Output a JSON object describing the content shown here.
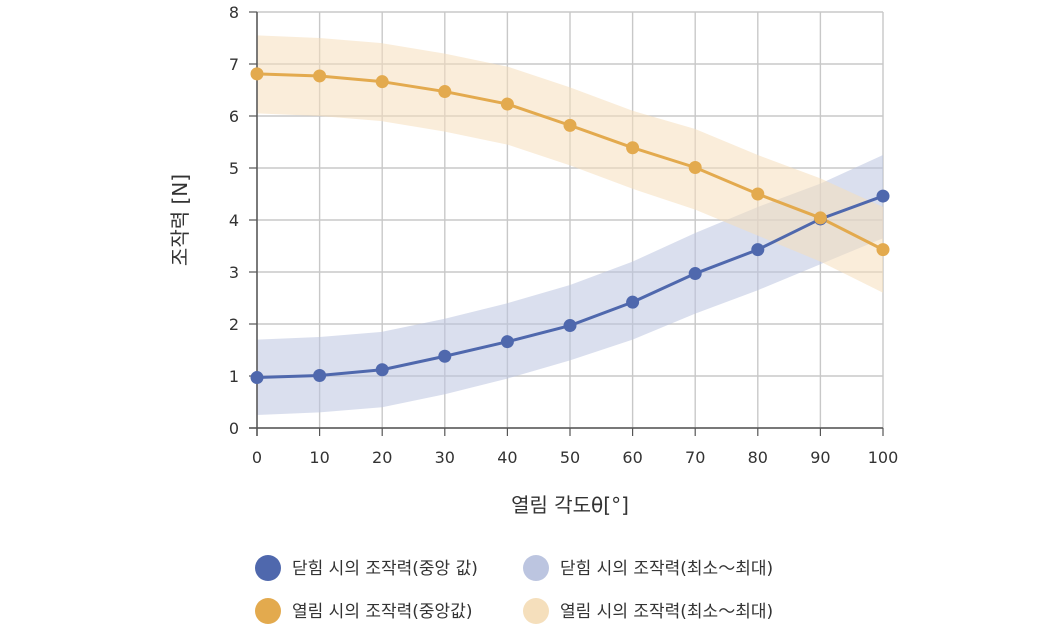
{
  "chart_data": {
    "type": "line",
    "xlabel": "열림 각도θ[°]",
    "ylabel": "조작력 [N]",
    "xlim": [
      0,
      100
    ],
    "ylim": [
      0,
      8
    ],
    "x": [
      0,
      10,
      20,
      30,
      40,
      50,
      60,
      70,
      80,
      90,
      100
    ],
    "x_ticks": [
      "0",
      "10",
      "20",
      "30",
      "40",
      "50",
      "60",
      "70",
      "80",
      "90",
      "100"
    ],
    "y_ticks": [
      "0",
      "1",
      "2",
      "3",
      "4",
      "5",
      "6",
      "7",
      "8"
    ],
    "grid": true,
    "legend_position": "bottom",
    "series": [
      {
        "name": "닫힘 시의 조작력(중앙 값)",
        "color": "#4F68AD",
        "values": [
          0.97,
          1.01,
          1.12,
          1.38,
          1.66,
          1.97,
          2.42,
          2.97,
          3.43,
          4.02,
          4.46
        ]
      },
      {
        "name": "열림 시의 조작력(중앙값)",
        "color": "#E3AA4E",
        "values": [
          6.81,
          6.77,
          6.66,
          6.47,
          6.23,
          5.82,
          5.39,
          5.01,
          4.5,
          4.04,
          3.43
        ]
      }
    ],
    "bands": [
      {
        "name": "닫힘 시의 조작력(최소～최대)",
        "color": "#BCC5E0",
        "lower": [
          0.25,
          0.3,
          0.4,
          0.65,
          0.95,
          1.3,
          1.7,
          2.2,
          2.65,
          3.15,
          3.65
        ],
        "upper": [
          1.7,
          1.75,
          1.85,
          2.1,
          2.4,
          2.75,
          3.2,
          3.75,
          4.25,
          4.7,
          5.25
        ]
      },
      {
        "name": "열림 시의 조작력(최소～최대)",
        "color": "#F5DFBC",
        "lower": [
          6.05,
          6.0,
          5.9,
          5.7,
          5.45,
          5.05,
          4.6,
          4.2,
          3.7,
          3.2,
          2.6
        ],
        "upper": [
          7.55,
          7.5,
          7.4,
          7.2,
          6.95,
          6.55,
          6.1,
          5.75,
          5.25,
          4.8,
          4.25
        ]
      }
    ]
  }
}
